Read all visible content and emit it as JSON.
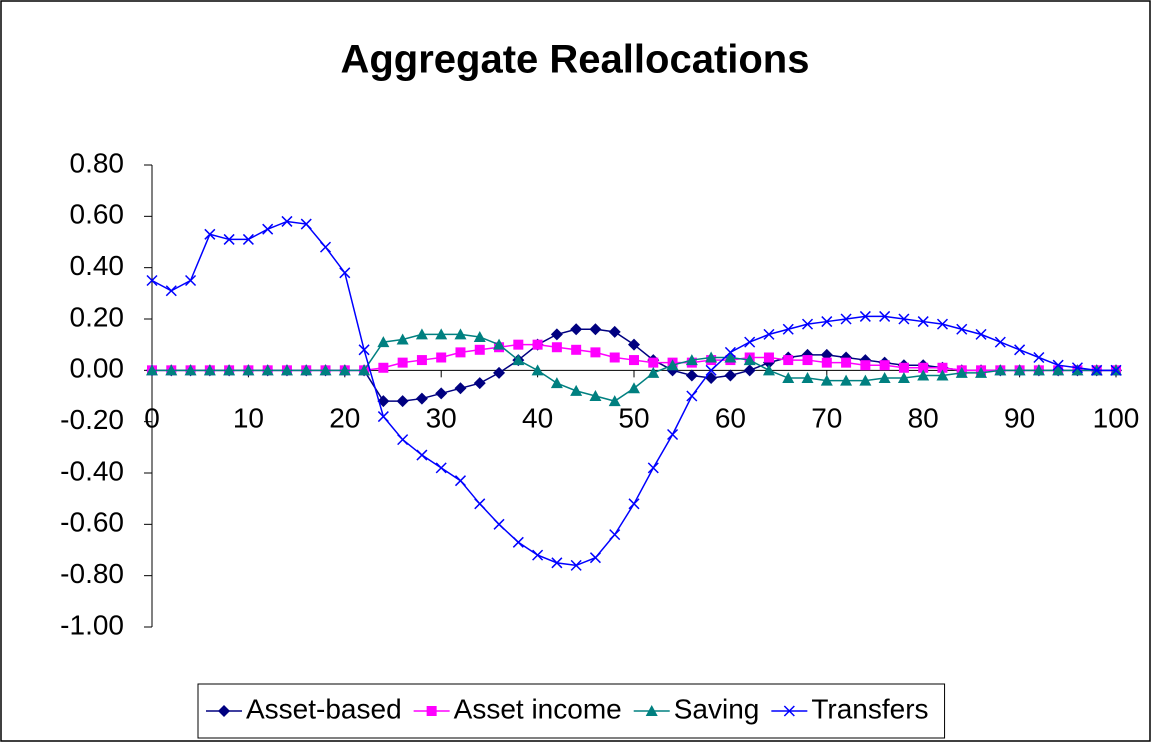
{
  "chart_data": {
    "type": "line",
    "title": "Aggregate Reallocations",
    "x": [
      0,
      2,
      4,
      6,
      8,
      10,
      12,
      14,
      16,
      18,
      20,
      22,
      24,
      26,
      28,
      30,
      32,
      34,
      36,
      38,
      40,
      42,
      44,
      46,
      48,
      50,
      52,
      54,
      56,
      58,
      60,
      62,
      64,
      66,
      68,
      70,
      72,
      74,
      76,
      78,
      80,
      82,
      84,
      86,
      88,
      90,
      92,
      94,
      96,
      98,
      100
    ],
    "series": [
      {
        "name": "Asset-based",
        "color": "#000080",
        "marker": "diamond",
        "values": [
          0,
          0,
          0,
          0,
          0,
          0,
          0,
          0,
          0,
          0,
          0,
          0,
          -0.12,
          -0.12,
          -0.11,
          -0.09,
          -0.07,
          -0.05,
          -0.01,
          0.04,
          0.1,
          0.14,
          0.16,
          0.16,
          0.15,
          0.1,
          0.04,
          0.0,
          -0.02,
          -0.03,
          -0.02,
          0.0,
          0.03,
          0.05,
          0.06,
          0.06,
          0.05,
          0.04,
          0.03,
          0.02,
          0.02,
          0.01,
          0.0,
          0,
          0,
          0,
          0,
          0,
          0,
          0,
          0
        ]
      },
      {
        "name": "Asset income",
        "color": "#FF00FF",
        "marker": "square",
        "values": [
          0,
          0,
          0,
          0,
          0,
          0,
          0,
          0,
          0,
          0,
          0,
          0,
          0.01,
          0.03,
          0.04,
          0.05,
          0.07,
          0.08,
          0.09,
          0.1,
          0.1,
          0.09,
          0.08,
          0.07,
          0.05,
          0.04,
          0.03,
          0.03,
          0.03,
          0.04,
          0.04,
          0.05,
          0.05,
          0.04,
          0.04,
          0.03,
          0.03,
          0.02,
          0.02,
          0.01,
          0.01,
          0.01,
          0.0,
          0,
          0,
          0,
          0,
          0,
          0,
          0,
          0
        ]
      },
      {
        "name": "Saving",
        "color": "#008080",
        "marker": "triangle",
        "values": [
          0,
          0,
          0,
          0,
          0,
          0,
          0,
          0,
          0,
          0,
          0,
          0,
          0.11,
          0.12,
          0.14,
          0.14,
          0.14,
          0.13,
          0.1,
          0.04,
          0.0,
          -0.05,
          -0.08,
          -0.1,
          -0.12,
          -0.07,
          -0.01,
          0.02,
          0.04,
          0.05,
          0.05,
          0.04,
          0.0,
          -0.03,
          -0.03,
          -0.04,
          -0.04,
          -0.04,
          -0.03,
          -0.03,
          -0.02,
          -0.02,
          -0.01,
          -0.01,
          0,
          0,
          0,
          0,
          0,
          0,
          0
        ]
      },
      {
        "name": "Transfers",
        "color": "#0000FF",
        "marker": "x",
        "values": [
          0.35,
          0.31,
          0.35,
          0.53,
          0.51,
          0.51,
          0.55,
          0.58,
          0.57,
          0.48,
          0.38,
          0.08,
          -0.18,
          -0.27,
          -0.33,
          -0.38,
          -0.43,
          -0.52,
          -0.6,
          -0.67,
          -0.72,
          -0.75,
          -0.76,
          -0.73,
          -0.64,
          -0.52,
          -0.38,
          -0.25,
          -0.1,
          0.0,
          0.07,
          0.11,
          0.14,
          0.16,
          0.18,
          0.19,
          0.2,
          0.21,
          0.21,
          0.2,
          0.19,
          0.18,
          0.16,
          0.14,
          0.11,
          0.08,
          0.05,
          0.02,
          0.01,
          0.0,
          0.0
        ]
      }
    ],
    "xlim": [
      0,
      100
    ],
    "xticks": [
      0,
      10,
      20,
      30,
      40,
      50,
      60,
      70,
      80,
      90,
      100
    ],
    "ylim": [
      -1,
      0.8
    ],
    "yticks": [
      {
        "value": -1,
        "label": "-1.00"
      },
      {
        "value": -0.8,
        "label": "-0.80"
      },
      {
        "value": -0.6,
        "label": "-0.60"
      },
      {
        "value": -0.4,
        "label": "-0.40"
      },
      {
        "value": -0.2,
        "label": "-0.20"
      },
      {
        "value": 0,
        "label": "0.00"
      },
      {
        "value": 0.2,
        "label": "0.20"
      },
      {
        "value": 0.4,
        "label": "0.40"
      },
      {
        "value": 0.6,
        "label": "0.60"
      },
      {
        "value": 0.8,
        "label": "0.80"
      }
    ],
    "grid": false,
    "legend": "bottom"
  }
}
